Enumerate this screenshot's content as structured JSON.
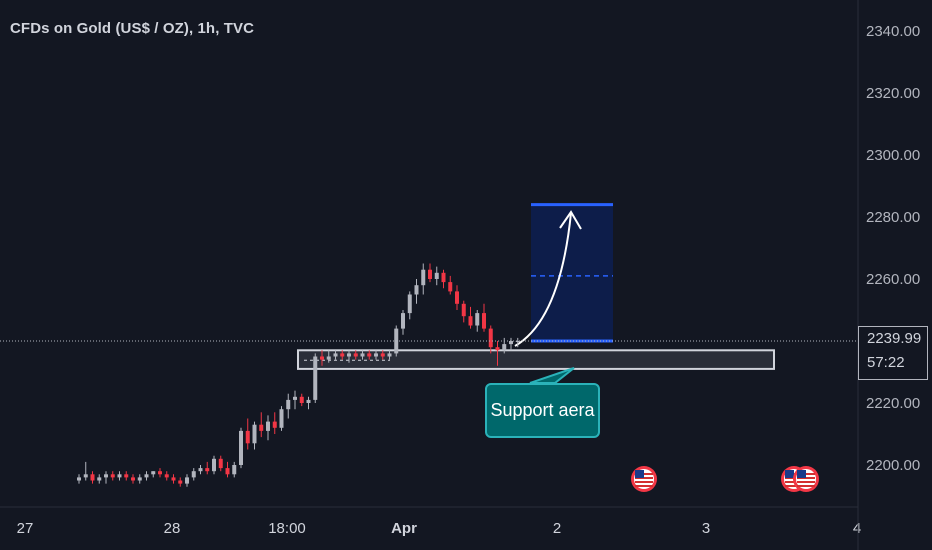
{
  "header": {
    "title": "CFDs on Gold (US$ / OZ), 1h, TVC"
  },
  "price_tag": {
    "price": "2239.99",
    "countdown": "57:22"
  },
  "annotation": {
    "label": "Support aera"
  },
  "colors": {
    "background": "#131722",
    "up": "#b2b5be",
    "down": "#f23645",
    "target_fill": "#0d1d4a",
    "target_line": "#2962ff",
    "callout_fill": "#00686b",
    "callout_border": "#2bb2b9",
    "support_zone": "#2a2e39"
  },
  "events": [
    {
      "icon": "us-flag-icon"
    },
    {
      "icon": "us-flag-icon"
    },
    {
      "icon": "us-flag-icon"
    }
  ],
  "chart_data": {
    "type": "candlestick",
    "title": "CFDs on Gold (US$ / OZ), 1h, TVC",
    "ylim": [
      2193,
      2347
    ],
    "y_ticks": [
      2200,
      2220,
      2240,
      2260,
      2280,
      2300,
      2320,
      2340
    ],
    "y_tick_labels": [
      "2200.00",
      "2220.00",
      "2240.00",
      "2260.00",
      "2280.00",
      "2300.00",
      "2320.00",
      "2340.00"
    ],
    "x_tick_labels": [
      "27",
      "28",
      "18:00",
      "Apr",
      "2",
      "3",
      "4"
    ],
    "current_price": 2239.99,
    "candles": [
      {
        "o": 2195,
        "h": 2197,
        "l": 2194,
        "c": 2196
      },
      {
        "o": 2196,
        "h": 2201,
        "l": 2195,
        "c": 2197
      },
      {
        "o": 2197,
        "h": 2198,
        "l": 2194,
        "c": 2195
      },
      {
        "o": 2195,
        "h": 2197,
        "l": 2194,
        "c": 2196
      },
      {
        "o": 2196,
        "h": 2198,
        "l": 2194,
        "c": 2197
      },
      {
        "o": 2197,
        "h": 2198,
        "l": 2195,
        "c": 2196
      },
      {
        "o": 2196,
        "h": 2198,
        "l": 2195,
        "c": 2197
      },
      {
        "o": 2197,
        "h": 2198,
        "l": 2195,
        "c": 2196
      },
      {
        "o": 2196,
        "h": 2197,
        "l": 2194,
        "c": 2195
      },
      {
        "o": 2195,
        "h": 2197,
        "l": 2194,
        "c": 2196
      },
      {
        "o": 2196,
        "h": 2198,
        "l": 2195,
        "c": 2197
      },
      {
        "o": 2197,
        "h": 2198,
        "l": 2196,
        "c": 2198
      },
      {
        "o": 2198,
        "h": 2199,
        "l": 2196,
        "c": 2197
      },
      {
        "o": 2197,
        "h": 2198,
        "l": 2195,
        "c": 2196
      },
      {
        "o": 2196,
        "h": 2197,
        "l": 2194,
        "c": 2195
      },
      {
        "o": 2195,
        "h": 2196,
        "l": 2193,
        "c": 2194
      },
      {
        "o": 2194,
        "h": 2197,
        "l": 2193,
        "c": 2196
      },
      {
        "o": 2196,
        "h": 2199,
        "l": 2195,
        "c": 2198
      },
      {
        "o": 2198,
        "h": 2200,
        "l": 2197,
        "c": 2199
      },
      {
        "o": 2199,
        "h": 2201,
        "l": 2197,
        "c": 2198
      },
      {
        "o": 2198,
        "h": 2203,
        "l": 2197,
        "c": 2202
      },
      {
        "o": 2202,
        "h": 2203,
        "l": 2198,
        "c": 2199
      },
      {
        "o": 2199,
        "h": 2201,
        "l": 2196,
        "c": 2197
      },
      {
        "o": 2197,
        "h": 2201,
        "l": 2196,
        "c": 2200
      },
      {
        "o": 2200,
        "h": 2212,
        "l": 2199,
        "c": 2211
      },
      {
        "o": 2211,
        "h": 2215,
        "l": 2205,
        "c": 2207
      },
      {
        "o": 2207,
        "h": 2214,
        "l": 2205,
        "c": 2213
      },
      {
        "o": 2213,
        "h": 2217,
        "l": 2209,
        "c": 2211
      },
      {
        "o": 2211,
        "h": 2216,
        "l": 2208,
        "c": 2214
      },
      {
        "o": 2214,
        "h": 2217,
        "l": 2210,
        "c": 2212
      },
      {
        "o": 2212,
        "h": 2219,
        "l": 2211,
        "c": 2218
      },
      {
        "o": 2218,
        "h": 2223,
        "l": 2215,
        "c": 2221
      },
      {
        "o": 2221,
        "h": 2224,
        "l": 2218,
        "c": 2222
      },
      {
        "o": 2222,
        "h": 2223,
        "l": 2219,
        "c": 2220
      },
      {
        "o": 2220,
        "h": 2222,
        "l": 2218,
        "c": 2221
      },
      {
        "o": 2221,
        "h": 2236,
        "l": 2220,
        "c": 2235
      },
      {
        "o": 2235,
        "h": 2237,
        "l": 2232,
        "c": 2234
      },
      {
        "o": 2234,
        "h": 2237,
        "l": 2233,
        "c": 2235
      },
      {
        "o": 2235,
        "h": 2237,
        "l": 2234,
        "c": 2236
      },
      {
        "o": 2236,
        "h": 2237,
        "l": 2234,
        "c": 2235
      },
      {
        "o": 2235,
        "h": 2237,
        "l": 2233,
        "c": 2236
      },
      {
        "o": 2236,
        "h": 2237,
        "l": 2234,
        "c": 2235
      },
      {
        "o": 2235,
        "h": 2237,
        "l": 2234,
        "c": 2236
      },
      {
        "o": 2236,
        "h": 2237,
        "l": 2234,
        "c": 2235
      },
      {
        "o": 2235,
        "h": 2237,
        "l": 2234,
        "c": 2236
      },
      {
        "o": 2236,
        "h": 2237,
        "l": 2234,
        "c": 2235
      },
      {
        "o": 2235,
        "h": 2237,
        "l": 2234,
        "c": 2236
      },
      {
        "o": 2236,
        "h": 2245,
        "l": 2235,
        "c": 2244
      },
      {
        "o": 2244,
        "h": 2250,
        "l": 2242,
        "c": 2249
      },
      {
        "o": 2249,
        "h": 2256,
        "l": 2247,
        "c": 2255
      },
      {
        "o": 2255,
        "h": 2260,
        "l": 2252,
        "c": 2258
      },
      {
        "o": 2258,
        "h": 2265,
        "l": 2255,
        "c": 2263
      },
      {
        "o": 2263,
        "h": 2265,
        "l": 2259,
        "c": 2260
      },
      {
        "o": 2260,
        "h": 2264,
        "l": 2258,
        "c": 2262
      },
      {
        "o": 2262,
        "h": 2263,
        "l": 2257,
        "c": 2259
      },
      {
        "o": 2259,
        "h": 2261,
        "l": 2255,
        "c": 2256
      },
      {
        "o": 2256,
        "h": 2258,
        "l": 2250,
        "c": 2252
      },
      {
        "o": 2252,
        "h": 2253,
        "l": 2246,
        "c": 2248
      },
      {
        "o": 2248,
        "h": 2251,
        "l": 2244,
        "c": 2245
      },
      {
        "o": 2245,
        "h": 2250,
        "l": 2243,
        "c": 2249
      },
      {
        "o": 2249,
        "h": 2252,
        "l": 2243,
        "c": 2244
      },
      {
        "o": 2244,
        "h": 2245,
        "l": 2236,
        "c": 2238
      },
      {
        "o": 2238,
        "h": 2240,
        "l": 2232,
        "c": 2237
      },
      {
        "o": 2237,
        "h": 2241,
        "l": 2236,
        "c": 2239
      },
      {
        "o": 2239,
        "h": 2241,
        "l": 2237,
        "c": 2240
      },
      {
        "o": 2240,
        "h": 2241,
        "l": 2238,
        "c": 2240
      }
    ],
    "support_zone": {
      "y_top": 2237,
      "y_bottom": 2231
    },
    "target_box": {
      "y_top": 2284,
      "y_mid": 2261,
      "y_bottom": 2240
    }
  }
}
